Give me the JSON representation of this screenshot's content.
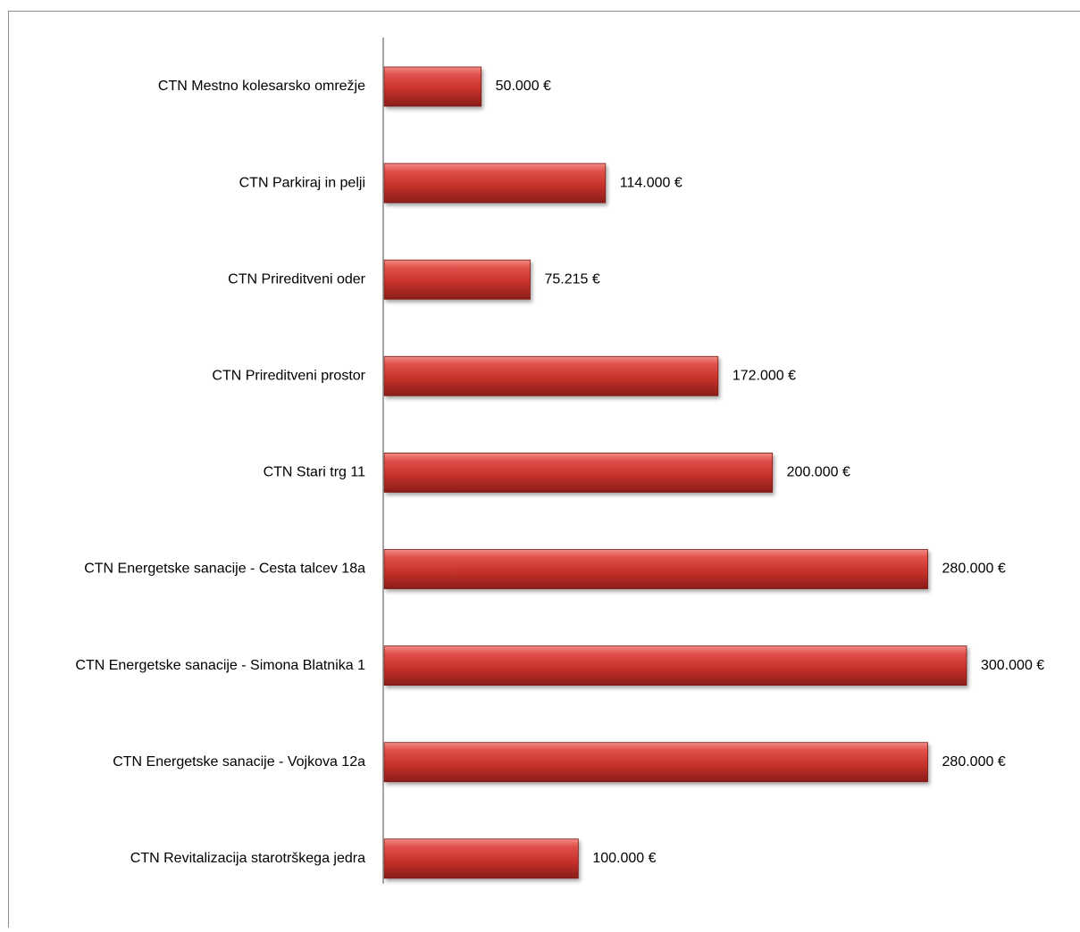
{
  "chart_data": {
    "type": "bar",
    "orientation": "horizontal",
    "title": "",
    "xlabel": "",
    "ylabel": "",
    "xlim": [
      0,
      310000
    ],
    "grid": false,
    "legend": "none",
    "categories": [
      "CTN Mestno kolesarsko omrežje",
      "CTN Parkiraj in pelji",
      "CTN Prireditveni oder",
      "CTN Prireditveni prostor",
      "CTN Stari trg 11",
      "CTN Energetske sanacije - Cesta talcev 18a",
      "CTN Energetske sanacije - Simona Blatnika 1",
      "CTN Energetske sanacije - Vojkova 12a",
      "CTN Revitalizacija starotrškega jedra"
    ],
    "values": [
      50000,
      114000,
      75215,
      172000,
      200000,
      280000,
      300000,
      280000,
      100000
    ],
    "data_labels": [
      "50.000 €",
      "114.000 €",
      "75.215 €",
      "172.000 €",
      "200.000 €",
      "280.000 €",
      "300.000 €",
      "280.000 €",
      "100.000 €"
    ],
    "bar_color": "#c0392b"
  }
}
